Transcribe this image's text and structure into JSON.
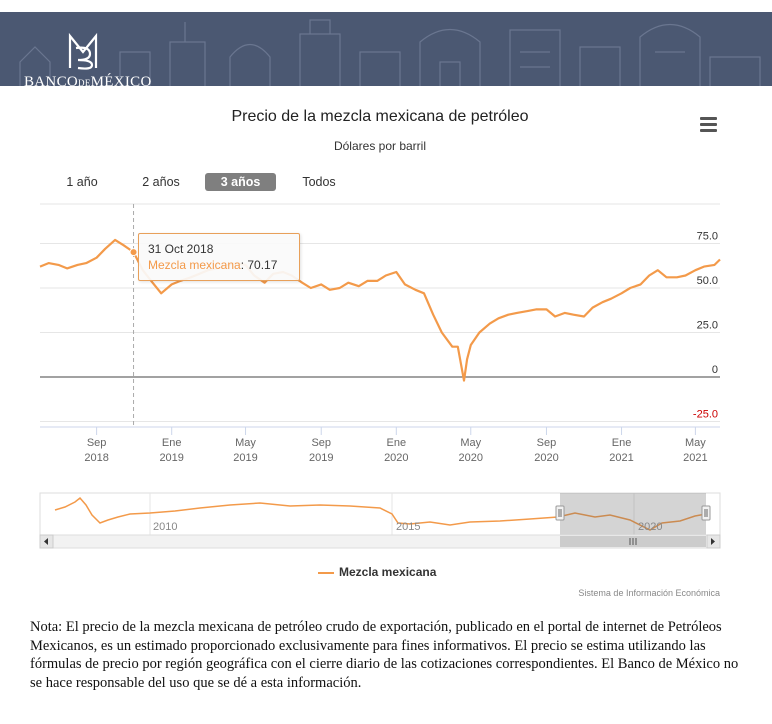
{
  "header": {
    "logo_text": {
      "part1": "BANCO",
      "part2": "DE",
      "part3": "MÉXICO"
    }
  },
  "chart": {
    "menu_icon": "hamburger-menu-icon",
    "range_selector": {
      "buttons": [
        {
          "label": "1 año",
          "active": false
        },
        {
          "label": "2 años",
          "active": false
        },
        {
          "label": "3 años",
          "active": true
        },
        {
          "label": "Todos",
          "active": false
        }
      ]
    },
    "tooltip": {
      "date": "31 Oct 2018",
      "series": "Mezcla mexicana",
      "value": "70.17"
    },
    "navigator_labels": [
      "2010",
      "2015",
      "2020"
    ],
    "credits": "Sistema de Información Económica"
  },
  "chart_data": {
    "type": "line",
    "title": "Precio de la mezcla mexicana de petróleo",
    "subtitle": "Dólares por barril",
    "xlabel": "",
    "ylabel": "",
    "y_ticks": [
      "75.0",
      "50.0",
      "25.0",
      "0",
      "-25.0"
    ],
    "ylim": [
      -25,
      75
    ],
    "x_ticks": [
      {
        "month": "Sep",
        "year": "2018"
      },
      {
        "month": "Ene",
        "year": "2019"
      },
      {
        "month": "May",
        "year": "2019"
      },
      {
        "month": "Sep",
        "year": "2019"
      },
      {
        "month": "Ene",
        "year": "2020"
      },
      {
        "month": "May",
        "year": "2020"
      },
      {
        "month": "Sep",
        "year": "2020"
      },
      {
        "month": "Ene",
        "year": "2021"
      },
      {
        "month": "May",
        "year": "2021"
      }
    ],
    "grid": true,
    "legend": "bottom",
    "colors": {
      "series": "#f39a4a",
      "negative_tick": "#cc0000"
    },
    "series": [
      {
        "name": "Mezcla mexicana",
        "x": [
          "2018-06-01",
          "2018-06-15",
          "2018-07-01",
          "2018-07-15",
          "2018-08-01",
          "2018-08-15",
          "2018-09-01",
          "2018-09-15",
          "2018-10-01",
          "2018-10-15",
          "2018-10-31",
          "2018-11-15",
          "2018-12-01",
          "2018-12-15",
          "2019-01-01",
          "2019-01-15",
          "2019-02-01",
          "2019-02-15",
          "2019-03-01",
          "2019-03-15",
          "2019-04-01",
          "2019-04-15",
          "2019-05-01",
          "2019-05-15",
          "2019-06-01",
          "2019-06-15",
          "2019-07-01",
          "2019-07-15",
          "2019-08-01",
          "2019-08-15",
          "2019-09-01",
          "2019-09-15",
          "2019-10-01",
          "2019-10-15",
          "2019-11-01",
          "2019-11-15",
          "2019-12-01",
          "2019-12-15",
          "2020-01-01",
          "2020-01-15",
          "2020-02-01",
          "2020-02-15",
          "2020-03-01",
          "2020-03-15",
          "2020-04-01",
          "2020-04-10",
          "2020-04-20",
          "2020-04-25",
          "2020-05-01",
          "2020-05-15",
          "2020-06-01",
          "2020-06-15",
          "2020-07-01",
          "2020-07-15",
          "2020-08-01",
          "2020-08-15",
          "2020-09-01",
          "2020-09-15",
          "2020-10-01",
          "2020-10-15",
          "2020-11-01",
          "2020-11-15",
          "2020-12-01",
          "2020-12-15",
          "2021-01-01",
          "2021-01-15",
          "2021-02-01",
          "2021-02-15",
          "2021-03-01",
          "2021-03-15",
          "2021-04-01",
          "2021-04-15",
          "2021-05-01",
          "2021-05-15",
          "2021-06-01",
          "2021-06-10"
        ],
        "values": [
          62,
          64,
          63,
          61,
          63,
          64,
          67,
          72,
          77,
          74,
          70.17,
          60,
          53,
          47,
          52,
          54,
          56,
          58,
          60,
          61,
          63,
          64,
          63,
          57,
          53,
          58,
          59,
          57,
          53,
          50,
          52,
          49,
          50,
          53,
          51,
          54,
          54,
          57,
          59,
          52,
          49,
          47,
          35,
          25,
          17,
          17,
          -2,
          10,
          18,
          25,
          30,
          33,
          35,
          36,
          37,
          38,
          38,
          34,
          36,
          35,
          34,
          39,
          42,
          44,
          47,
          50,
          52,
          57,
          60,
          56,
          56,
          57,
          60,
          62,
          63,
          66
        ]
      }
    ]
  },
  "note": "Nota: El precio de la mezcla mexicana de petróleo crudo de exportación, publicado en el portal de internet de Petróleos Mexicanos, es un estimado proporcionado exclusivamente para fines informativos. El precio se estima utilizando las fórmulas de precio por región geográfica con el cierre diario de las cotizaciones correspondientes. El Banco de México no se hace responsable del uso que se dé a esta información."
}
